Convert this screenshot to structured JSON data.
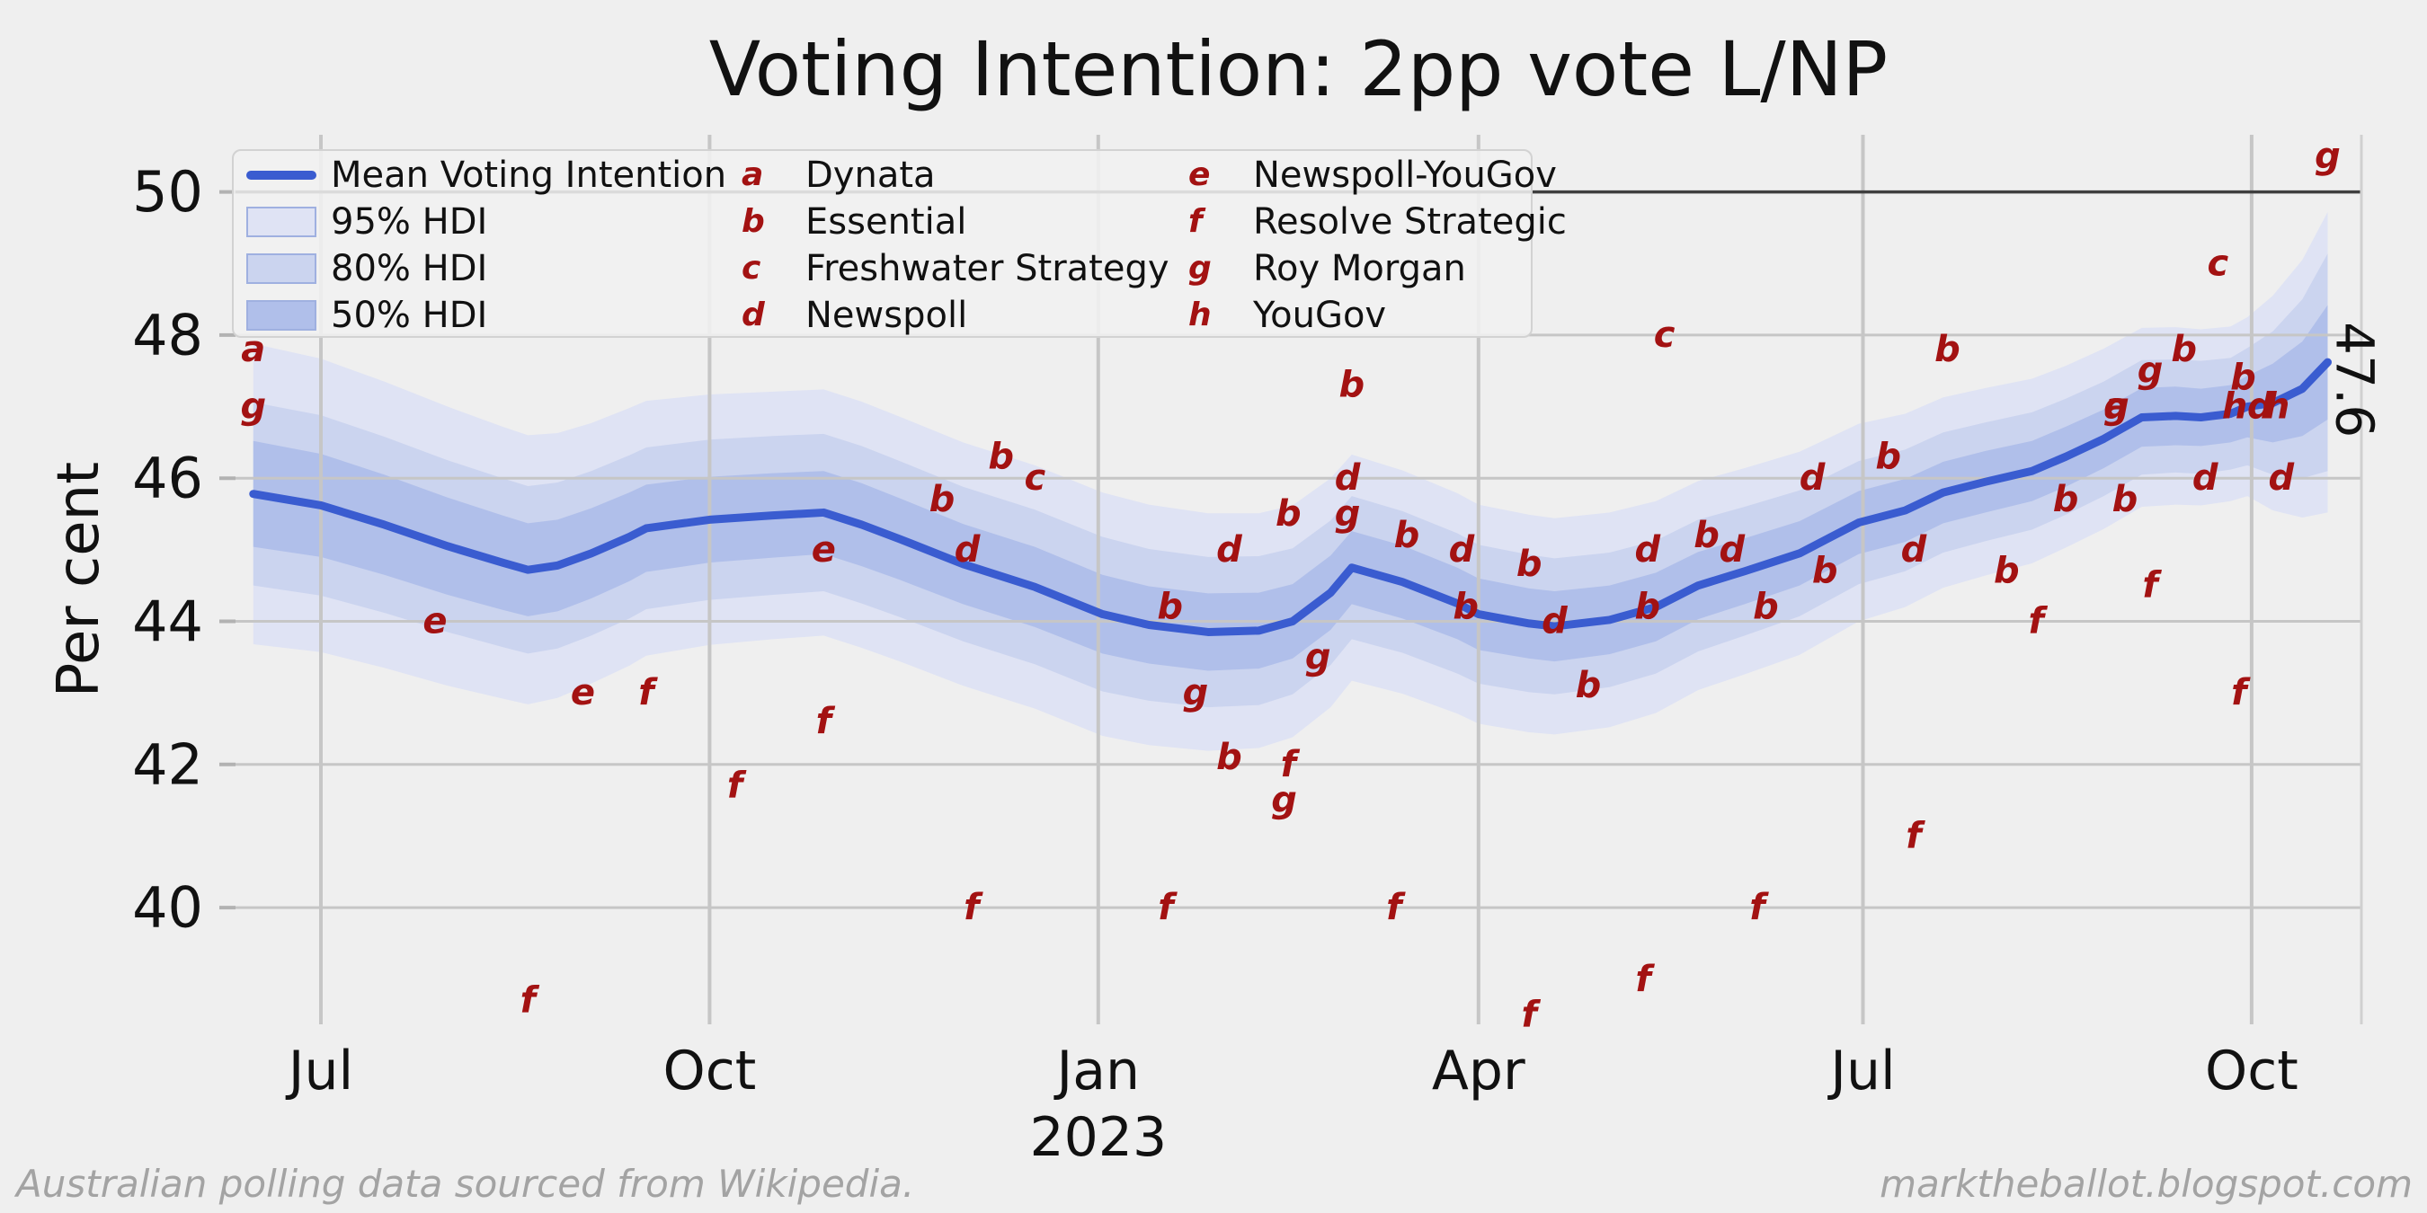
{
  "title": "Voting Intention: 2pp vote L/NP",
  "footer_left": "Australian polling data sourced from Wikipedia.",
  "footer_right": "marktheballot.blogspot.com",
  "colors": {
    "background": "#efefef",
    "grid": "#c6c6c6",
    "grid_dark": "#3f3f3f",
    "tick": "#b2b2b2",
    "mean_line": "#3a5cd0",
    "band_95": "#dfe3f4",
    "band_80": "#cbd4ef",
    "band_50": "#b0bfea",
    "marker": "#a31212",
    "text": "#111111",
    "muted_text": "#a3a3a3"
  },
  "legend": {
    "series": [
      {
        "swatch": "line",
        "label": "Mean Voting Intention"
      },
      {
        "swatch": "band_95",
        "label": "95% HDI"
      },
      {
        "swatch": "band_80",
        "label": "80% HDI"
      },
      {
        "swatch": "band_50",
        "label": "50% HDI"
      }
    ],
    "pollsters": [
      {
        "letter": "a",
        "name": "Dynata"
      },
      {
        "letter": "b",
        "name": "Essential"
      },
      {
        "letter": "c",
        "name": "Freshwater Strategy"
      },
      {
        "letter": "d",
        "name": "Newspoll"
      },
      {
        "letter": "e",
        "name": "Newspoll-YouGov"
      },
      {
        "letter": "f",
        "name": "Resolve Strategic"
      },
      {
        "letter": "g",
        "name": "Roy Morgan"
      },
      {
        "letter": "h",
        "name": "YouGov"
      }
    ]
  },
  "chart_data": {
    "type": "line",
    "title": "Voting Intention: 2pp vote L/NP",
    "xlabel": "",
    "ylabel": "Per cent",
    "ylim": [
      38.2,
      50.8
    ],
    "yticks": [
      40,
      42,
      44,
      46,
      48,
      50
    ],
    "grid": true,
    "legend_position": "upper left",
    "xticks": [
      {
        "date": "2022-07-01",
        "label": "Jul"
      },
      {
        "date": "2022-10-01",
        "label": "Oct"
      },
      {
        "date": "2023-01-01",
        "label": "Jan",
        "sublabel": "2023"
      },
      {
        "date": "2023-04-01",
        "label": "Apr"
      },
      {
        "date": "2023-07-01",
        "label": "Jul"
      },
      {
        "date": "2023-10-01",
        "label": "Oct"
      }
    ],
    "mean_series": {
      "name": "Mean Voting Intention",
      "dates": [
        "2022-06-15",
        "2022-07-01",
        "2022-07-16",
        "2022-07-31",
        "2022-08-13",
        "2022-08-19",
        "2022-08-26",
        "2022-09-03",
        "2022-09-12",
        "2022-09-16",
        "2022-10-01",
        "2022-10-16",
        "2022-10-28",
        "2022-11-06",
        "2022-11-15",
        "2022-11-30",
        "2022-12-17",
        "2023-01-02",
        "2023-01-13",
        "2023-01-27",
        "2023-02-08",
        "2023-02-16",
        "2023-02-25",
        "2023-03-02",
        "2023-03-14",
        "2023-03-27",
        "2023-04-01",
        "2023-04-13",
        "2023-04-19",
        "2023-05-02",
        "2023-05-13",
        "2023-05-23",
        "2023-06-03",
        "2023-06-16",
        "2023-06-30",
        "2023-07-11",
        "2023-07-20",
        "2023-07-30",
        "2023-08-10",
        "2023-08-18",
        "2023-08-27",
        "2023-09-05",
        "2023-09-13",
        "2023-09-19",
        "2023-09-26",
        "2023-09-30",
        "2023-10-06",
        "2023-10-13",
        "2023-10-19"
      ],
      "values": [
        45.78,
        45.62,
        45.35,
        45.05,
        44.82,
        44.72,
        44.78,
        44.95,
        45.18,
        45.3,
        45.42,
        45.48,
        45.52,
        45.35,
        45.15,
        44.8,
        44.48,
        44.1,
        43.95,
        43.85,
        43.87,
        44.0,
        44.4,
        44.75,
        44.55,
        44.25,
        44.1,
        43.97,
        43.93,
        44.02,
        44.2,
        44.5,
        44.7,
        44.95,
        45.38,
        45.55,
        45.8,
        45.95,
        46.1,
        46.3,
        46.55,
        46.85,
        46.87,
        46.85,
        46.9,
        47.0,
        47.05,
        47.25,
        47.62
      ]
    },
    "bands": {
      "w50": [
        0.74,
        0.72,
        0.7,
        0.68,
        0.66,
        0.65,
        0.64,
        0.63,
        0.62,
        0.61,
        0.6,
        0.59,
        0.58,
        0.58,
        0.57,
        0.56,
        0.56,
        0.55,
        0.54,
        0.54,
        0.53,
        0.52,
        0.52,
        0.51,
        0.51,
        0.5,
        0.5,
        0.49,
        0.49,
        0.48,
        0.48,
        0.47,
        0.46,
        0.45,
        0.44,
        0.44,
        0.43,
        0.43,
        0.42,
        0.42,
        0.41,
        0.41,
        0.41,
        0.4,
        0.4,
        0.43,
        0.55,
        0.66,
        0.8
      ],
      "w80": [
        1.28,
        1.26,
        1.23,
        1.2,
        1.18,
        1.17,
        1.16,
        1.15,
        1.14,
        1.13,
        1.12,
        1.11,
        1.1,
        1.1,
        1.09,
        1.08,
        1.08,
        1.08,
        1.06,
        1.05,
        1.04,
        1.02,
        1.01,
        1.0,
        0.99,
        0.98,
        0.97,
        0.96,
        0.95,
        0.94,
        0.93,
        0.92,
        0.9,
        0.88,
        0.86,
        0.85,
        0.84,
        0.83,
        0.82,
        0.81,
        0.8,
        0.8,
        0.79,
        0.79,
        0.78,
        0.82,
        1.0,
        1.25,
        1.52
      ],
      "w95": [
        2.1,
        2.05,
        2.0,
        1.95,
        1.9,
        1.88,
        1.85,
        1.82,
        1.8,
        1.78,
        1.75,
        1.73,
        1.72,
        1.72,
        1.71,
        1.7,
        1.7,
        1.7,
        1.68,
        1.66,
        1.64,
        1.62,
        1.6,
        1.58,
        1.56,
        1.54,
        1.53,
        1.52,
        1.51,
        1.5,
        1.48,
        1.46,
        1.44,
        1.42,
        1.38,
        1.35,
        1.33,
        1.31,
        1.29,
        1.27,
        1.26,
        1.25,
        1.24,
        1.23,
        1.22,
        1.25,
        1.5,
        1.8,
        2.1
      ]
    },
    "end_annotation": {
      "label": "47.6",
      "date": "2023-10-19",
      "value": 47.6
    },
    "points": [
      {
        "pollster": "a",
        "date": "2022-06-15",
        "value": 47.8
      },
      {
        "pollster": "g",
        "date": "2022-06-15",
        "value": 47.0
      },
      {
        "pollster": "e",
        "date": "2022-07-28",
        "value": 44.0
      },
      {
        "pollster": "f",
        "date": "2022-08-19",
        "value": 38.7
      },
      {
        "pollster": "e",
        "date": "2022-09-01",
        "value": 43.0
      },
      {
        "pollster": "f",
        "date": "2022-09-16",
        "value": 43.0
      },
      {
        "pollster": "f",
        "date": "2022-10-07",
        "value": 41.7
      },
      {
        "pollster": "f",
        "date": "2022-10-28",
        "value": 42.6
      },
      {
        "pollster": "e",
        "date": "2022-10-28",
        "value": 45.0
      },
      {
        "pollster": "b",
        "date": "2022-11-25",
        "value": 45.7
      },
      {
        "pollster": "d",
        "date": "2022-12-01",
        "value": 45.0
      },
      {
        "pollster": "f",
        "date": "2022-12-02",
        "value": 40.0
      },
      {
        "pollster": "b",
        "date": "2022-12-09",
        "value": 46.3
      },
      {
        "pollster": "c",
        "date": "2022-12-17",
        "value": 46.0
      },
      {
        "pollster": "f",
        "date": "2023-01-17",
        "value": 40.0
      },
      {
        "pollster": "b",
        "date": "2023-01-18",
        "value": 44.2
      },
      {
        "pollster": "g",
        "date": "2023-01-24",
        "value": 43.0
      },
      {
        "pollster": "b",
        "date": "2023-02-01",
        "value": 42.1
      },
      {
        "pollster": "d",
        "date": "2023-02-01",
        "value": 45.0
      },
      {
        "pollster": "g",
        "date": "2023-02-14",
        "value": 41.5
      },
      {
        "pollster": "f",
        "date": "2023-02-15",
        "value": 42.0
      },
      {
        "pollster": "b",
        "date": "2023-02-15",
        "value": 45.5
      },
      {
        "pollster": "g",
        "date": "2023-02-22",
        "value": 43.5
      },
      {
        "pollster": "d",
        "date": "2023-03-01",
        "value": 46.0
      },
      {
        "pollster": "g",
        "date": "2023-03-01",
        "value": 45.5
      },
      {
        "pollster": "b",
        "date": "2023-03-02",
        "value": 47.3
      },
      {
        "pollster": "f",
        "date": "2023-03-12",
        "value": 40.0
      },
      {
        "pollster": "b",
        "date": "2023-03-15",
        "value": 45.2
      },
      {
        "pollster": "d",
        "date": "2023-03-28",
        "value": 45.0
      },
      {
        "pollster": "b",
        "date": "2023-03-29",
        "value": 44.2
      },
      {
        "pollster": "b",
        "date": "2023-04-13",
        "value": 44.8
      },
      {
        "pollster": "f",
        "date": "2023-04-13",
        "value": 38.5
      },
      {
        "pollster": "d",
        "date": "2023-04-19",
        "value": 44.0
      },
      {
        "pollster": "b",
        "date": "2023-04-27",
        "value": 43.1
      },
      {
        "pollster": "f",
        "date": "2023-05-10",
        "value": 39.0
      },
      {
        "pollster": "d",
        "date": "2023-05-11",
        "value": 45.0
      },
      {
        "pollster": "b",
        "date": "2023-05-11",
        "value": 44.2
      },
      {
        "pollster": "c",
        "date": "2023-05-15",
        "value": 48.0
      },
      {
        "pollster": "b",
        "date": "2023-05-25",
        "value": 45.2
      },
      {
        "pollster": "d",
        "date": "2023-05-31",
        "value": 45.0
      },
      {
        "pollster": "f",
        "date": "2023-06-06",
        "value": 40.0
      },
      {
        "pollster": "b",
        "date": "2023-06-08",
        "value": 44.2
      },
      {
        "pollster": "d",
        "date": "2023-06-19",
        "value": 46.0
      },
      {
        "pollster": "b",
        "date": "2023-06-22",
        "value": 44.7
      },
      {
        "pollster": "b",
        "date": "2023-07-07",
        "value": 46.3
      },
      {
        "pollster": "d",
        "date": "2023-07-13",
        "value": 45.0
      },
      {
        "pollster": "f",
        "date": "2023-07-13",
        "value": 41.0
      },
      {
        "pollster": "b",
        "date": "2023-07-21",
        "value": 47.8
      },
      {
        "pollster": "b",
        "date": "2023-08-04",
        "value": 44.7
      },
      {
        "pollster": "f",
        "date": "2023-08-11",
        "value": 44.0
      },
      {
        "pollster": "b",
        "date": "2023-08-18",
        "value": 45.7
      },
      {
        "pollster": "a",
        "date": "2023-08-30",
        "value": 47.0
      },
      {
        "pollster": "g",
        "date": "2023-08-30",
        "value": 47.0
      },
      {
        "pollster": "b",
        "date": "2023-09-01",
        "value": 45.7
      },
      {
        "pollster": "g",
        "date": "2023-09-07",
        "value": 47.5
      },
      {
        "pollster": "f",
        "date": "2023-09-07",
        "value": 44.5
      },
      {
        "pollster": "b",
        "date": "2023-09-15",
        "value": 47.8
      },
      {
        "pollster": "d",
        "date": "2023-09-20",
        "value": 46.0
      },
      {
        "pollster": "c",
        "date": "2023-09-23",
        "value": 49.0
      },
      {
        "pollster": "h",
        "date": "2023-09-27",
        "value": 47.0
      },
      {
        "pollster": "f",
        "date": "2023-09-28",
        "value": 43.0
      },
      {
        "pollster": "b",
        "date": "2023-09-29",
        "value": 47.4
      },
      {
        "pollster": "d",
        "date": "2023-10-03",
        "value": 47.0
      },
      {
        "pollster": "h",
        "date": "2023-10-07",
        "value": 47.0
      },
      {
        "pollster": "d",
        "date": "2023-10-08",
        "value": 46.0
      },
      {
        "pollster": "g",
        "date": "2023-10-19",
        "value": 50.5
      }
    ]
  }
}
